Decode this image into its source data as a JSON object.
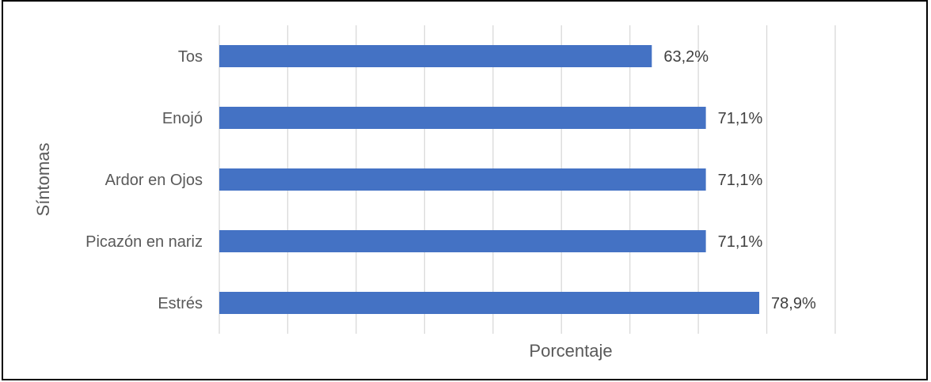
{
  "chart_data": {
    "type": "bar",
    "orientation": "horizontal",
    "title": "",
    "xlabel": "Porcentaje",
    "ylabel": "Síntomas",
    "categories": [
      "Tos",
      "Enojó",
      "Ardor en Ojos",
      "Picazón en nariz",
      "Estrés"
    ],
    "values": [
      63.2,
      71.1,
      71.1,
      71.1,
      78.9
    ],
    "data_labels": [
      "63,2%",
      "71,1%",
      "71,1%",
      "71,1%",
      "78,9%"
    ],
    "xlim": [
      0,
      90
    ],
    "x_gridline_step": 10,
    "x_tick_labels_shown": false,
    "grid": true,
    "legend": "none",
    "bar_color": "#4472C4",
    "gridline_color": "#D9D9D9",
    "border_color": "#000000"
  }
}
